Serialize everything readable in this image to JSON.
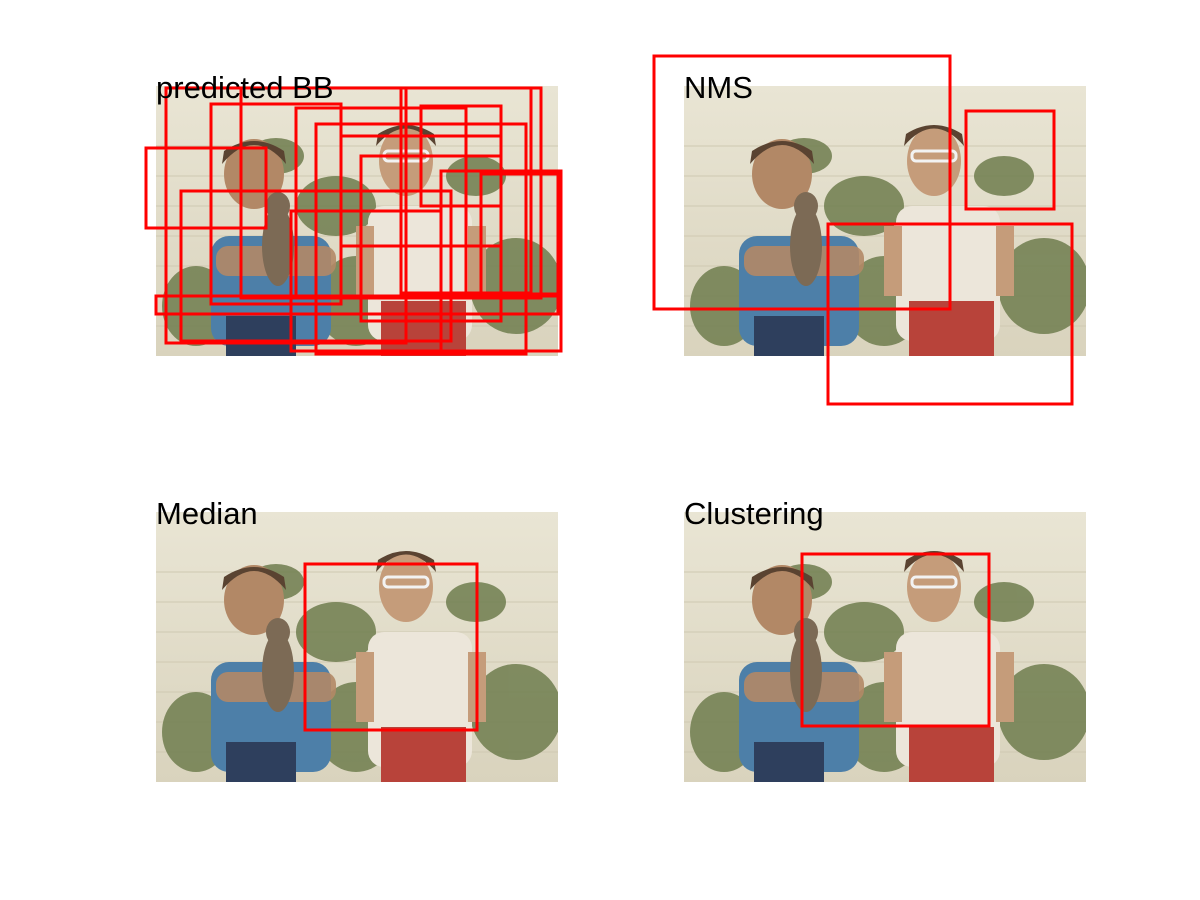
{
  "figure": {
    "panels": [
      {
        "title": "predicted BB",
        "boxes_count": "many"
      },
      {
        "title": "NMS"
      },
      {
        "title": "Median"
      },
      {
        "title": "Clustering"
      }
    ],
    "colors": {
      "box": "#ff0000",
      "background": "#ffffff",
      "wall": "#e6e1cf",
      "foliage": "#6f7d4e",
      "shirt_left": "#4d7fa8",
      "shirt_right": "#ece6da",
      "pants_right": "#b8433a",
      "jeans_left": "#2e3f5d",
      "skin": "#b28866",
      "hair": "#5a4331"
    }
  }
}
